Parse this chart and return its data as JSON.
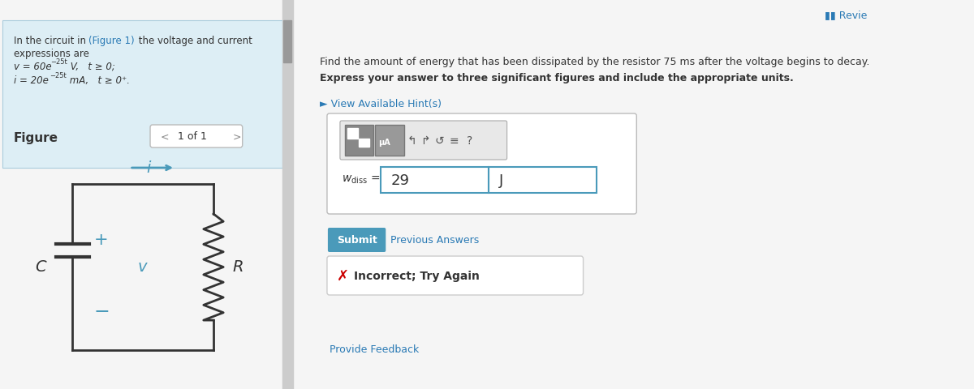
{
  "bg_color": "#f5f5f5",
  "colors": {
    "blue_btn": "#4a9aba",
    "red_x": "#cc0000",
    "link_blue": "#2a7ab5",
    "border_gray": "#cccccc",
    "text_dark": "#333333",
    "light_blue_bg": "#ddeef5"
  },
  "nav_text": "1 of 1",
  "question_text": "Find the amount of energy that has been dissipated by the resistor 75 ms after the voltage begins to decay.",
  "bold_text": "Express your answer to three significant figures and include the appropriate units.",
  "hint_text": "► View Available Hint(s)",
  "answer_value": "29",
  "unit_value": "J",
  "submit_text": "Submit",
  "prev_answers_text": "Previous Answers",
  "incorrect_text": "Incorrect; Try Again",
  "feedback_text": "Provide Feedback",
  "circuit_color": "#4a9aba"
}
